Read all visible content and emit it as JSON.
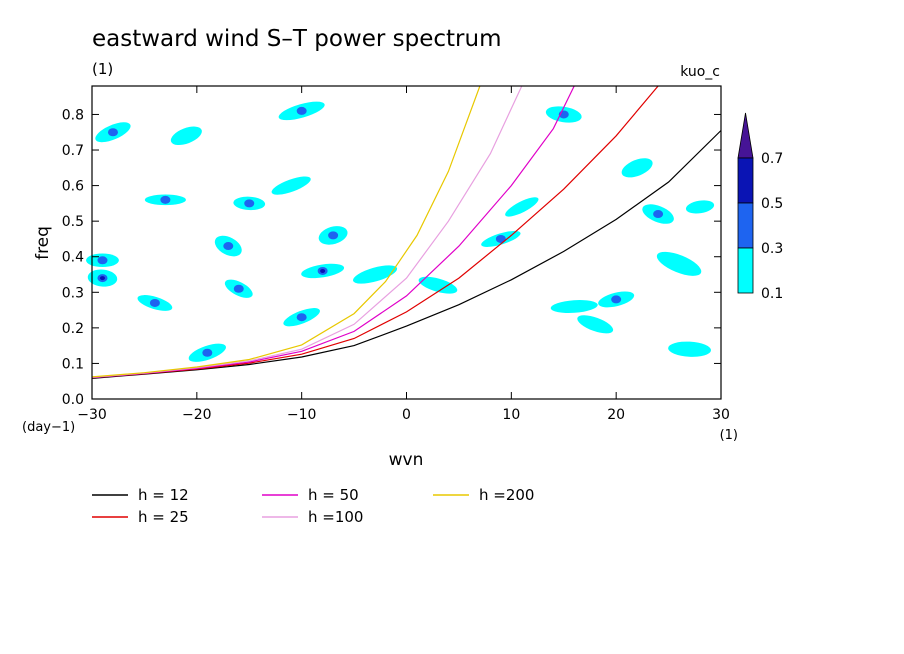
{
  "chart_data": {
    "type": "heatmap",
    "title": "eastward wind S–T power spectrum",
    "subtitle_left": "(1)",
    "subtitle_right": "kuo_c",
    "xlabel": "wvn",
    "ylabel": "freq",
    "x_unit": "(1)",
    "y_unit": "(day−1)",
    "xlim": [
      -30,
      30
    ],
    "ylim": [
      0,
      0.88
    ],
    "xticks": [
      -30,
      -20,
      -10,
      0,
      10,
      20,
      30
    ],
    "yticks": [
      0,
      0.1,
      0.2,
      0.3,
      0.4,
      0.5,
      0.6,
      0.7,
      0.8
    ],
    "colorbar": {
      "levels": [
        0.1,
        0.3,
        0.5,
        0.7
      ],
      "colors": [
        "#00ffff",
        "#1e64f0",
        "#0a14b4",
        "#461496"
      ],
      "extend": "max"
    },
    "contour_fill": [
      {
        "x": -28,
        "y": 0.75,
        "level": 0.3
      },
      {
        "x": -29,
        "y": 0.39,
        "level": 0.3
      },
      {
        "x": -29,
        "y": 0.34,
        "level": 0.5
      },
      {
        "x": -24,
        "y": 0.27,
        "level": 0.3
      },
      {
        "x": -23,
        "y": 0.56,
        "level": 0.3
      },
      {
        "x": -21,
        "y": 0.74,
        "level": 0.1
      },
      {
        "x": -19,
        "y": 0.13,
        "level": 0.3
      },
      {
        "x": -17,
        "y": 0.43,
        "level": 0.3
      },
      {
        "x": -16,
        "y": 0.31,
        "level": 0.3
      },
      {
        "x": -15,
        "y": 0.55,
        "level": 0.3
      },
      {
        "x": -11,
        "y": 0.6,
        "level": 0.1
      },
      {
        "x": -10,
        "y": 0.81,
        "level": 0.3
      },
      {
        "x": -10,
        "y": 0.23,
        "level": 0.3
      },
      {
        "x": -8,
        "y": 0.36,
        "level": 0.5
      },
      {
        "x": -7,
        "y": 0.46,
        "level": 0.3
      },
      {
        "x": -3,
        "y": 0.35,
        "level": 0.1
      },
      {
        "x": 3,
        "y": 0.32,
        "level": 0.1
      },
      {
        "x": 9,
        "y": 0.45,
        "level": 0.3
      },
      {
        "x": 11,
        "y": 0.54,
        "level": 0.1
      },
      {
        "x": 15,
        "y": 0.8,
        "level": 0.3
      },
      {
        "x": 16,
        "y": 0.26,
        "level": 0.1
      },
      {
        "x": 18,
        "y": 0.21,
        "level": 0.1
      },
      {
        "x": 20,
        "y": 0.28,
        "level": 0.3
      },
      {
        "x": 22,
        "y": 0.65,
        "level": 0.1
      },
      {
        "x": 24,
        "y": 0.52,
        "level": 0.3
      },
      {
        "x": 26,
        "y": 0.38,
        "level": 0.1
      },
      {
        "x": 27,
        "y": 0.14,
        "level": 0.1
      },
      {
        "x": 28,
        "y": 0.54,
        "level": 0.1
      }
    ],
    "dispersion_curves": [
      {
        "name": "h = 12",
        "color": "#000000",
        "points": [
          [
            -30,
            0.058
          ],
          [
            -25,
            0.07
          ],
          [
            -20,
            0.082
          ],
          [
            -15,
            0.097
          ],
          [
            -10,
            0.118
          ],
          [
            -5,
            0.15
          ],
          [
            0,
            0.205
          ],
          [
            5,
            0.265
          ],
          [
            10,
            0.335
          ],
          [
            15,
            0.415
          ],
          [
            20,
            0.505
          ],
          [
            25,
            0.61
          ],
          [
            30,
            0.755
          ]
        ]
      },
      {
        "name": "h = 25",
        "color": "#e00000",
        "points": [
          [
            -30,
            0.06
          ],
          [
            -25,
            0.071
          ],
          [
            -20,
            0.084
          ],
          [
            -15,
            0.101
          ],
          [
            -10,
            0.126
          ],
          [
            -5,
            0.17
          ],
          [
            0,
            0.245
          ],
          [
            5,
            0.34
          ],
          [
            10,
            0.46
          ],
          [
            15,
            0.59
          ],
          [
            20,
            0.74
          ],
          [
            24,
            0.88
          ]
        ]
      },
      {
        "name": "h = 50",
        "color": "#e000c8",
        "points": [
          [
            -30,
            0.06
          ],
          [
            -25,
            0.072
          ],
          [
            -20,
            0.086
          ],
          [
            -15,
            0.104
          ],
          [
            -10,
            0.134
          ],
          [
            -5,
            0.19
          ],
          [
            0,
            0.29
          ],
          [
            5,
            0.43
          ],
          [
            10,
            0.6
          ],
          [
            14,
            0.76
          ],
          [
            16,
            0.88
          ]
        ]
      },
      {
        "name": "h =100",
        "color": "#e8a0e0",
        "points": [
          [
            -30,
            0.061
          ],
          [
            -25,
            0.073
          ],
          [
            -20,
            0.088
          ],
          [
            -15,
            0.107
          ],
          [
            -10,
            0.14
          ],
          [
            -5,
            0.21
          ],
          [
            0,
            0.34
          ],
          [
            4,
            0.5
          ],
          [
            8,
            0.69
          ],
          [
            11,
            0.88
          ]
        ]
      },
      {
        "name": "h =200",
        "color": "#e8c800",
        "points": [
          [
            -30,
            0.062
          ],
          [
            -25,
            0.074
          ],
          [
            -20,
            0.09
          ],
          [
            -15,
            0.111
          ],
          [
            -10,
            0.152
          ],
          [
            -5,
            0.24
          ],
          [
            -2,
            0.33
          ],
          [
            1,
            0.46
          ],
          [
            4,
            0.64
          ],
          [
            7,
            0.88
          ]
        ]
      }
    ],
    "legend_placement": "bottom-left"
  }
}
